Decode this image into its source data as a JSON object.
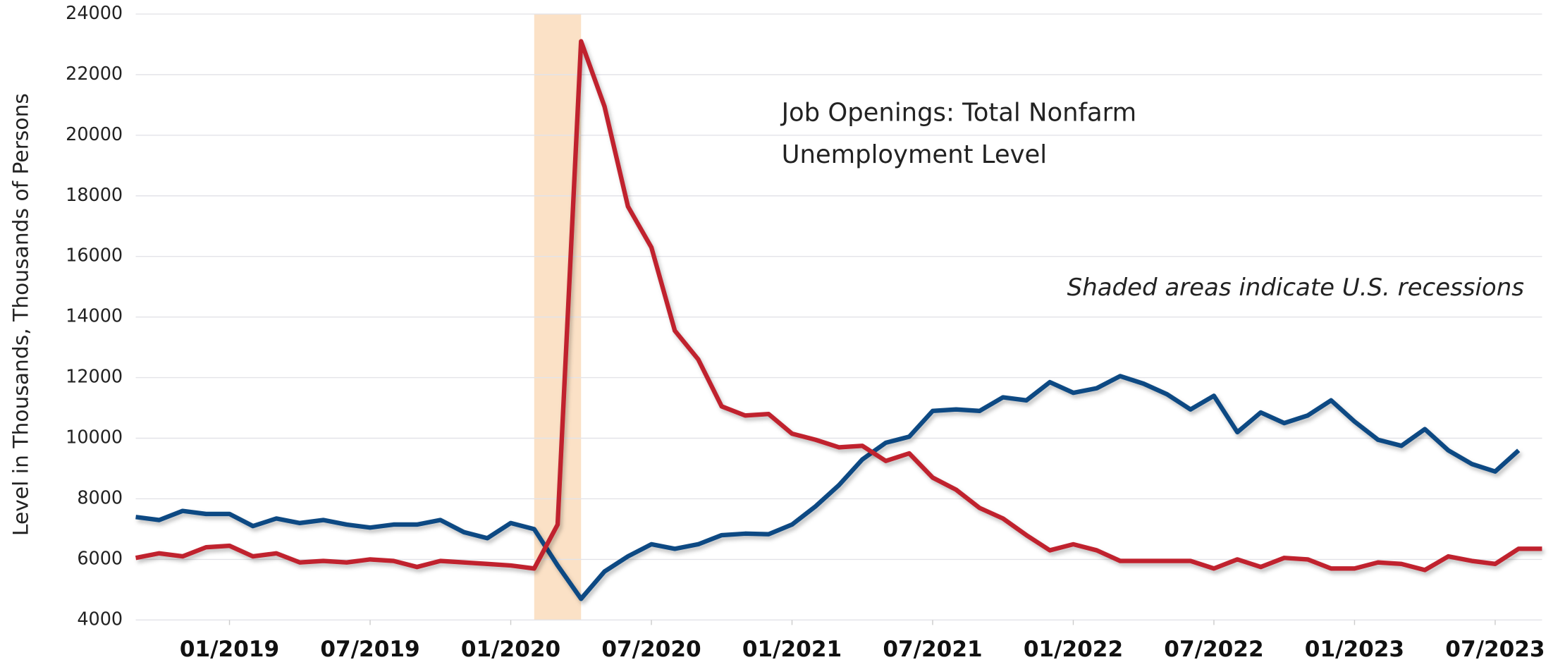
{
  "chart_data": {
    "type": "line",
    "y_label": "Level in Thousands, Thousands of Persons",
    "annotation": "Shaded areas indicate U.S. recessions",
    "x": [
      "09/2018",
      "10/2018",
      "11/2018",
      "12/2018",
      "01/2019",
      "02/2019",
      "03/2019",
      "04/2019",
      "05/2019",
      "06/2019",
      "07/2019",
      "08/2019",
      "09/2019",
      "10/2019",
      "11/2019",
      "12/2019",
      "01/2020",
      "02/2020",
      "03/2020",
      "04/2020",
      "05/2020",
      "06/2020",
      "07/2020",
      "08/2020",
      "09/2020",
      "10/2020",
      "11/2020",
      "12/2020",
      "01/2021",
      "02/2021",
      "03/2021",
      "04/2021",
      "05/2021",
      "06/2021",
      "07/2021",
      "08/2021",
      "09/2021",
      "10/2021",
      "11/2021",
      "12/2021",
      "01/2022",
      "02/2022",
      "03/2022",
      "04/2022",
      "05/2022",
      "06/2022",
      "07/2022",
      "08/2022",
      "09/2022",
      "10/2022",
      "11/2022",
      "12/2022",
      "01/2023",
      "02/2023",
      "03/2023",
      "04/2023",
      "05/2023",
      "06/2023",
      "07/2023",
      "08/2023",
      "09/2023"
    ],
    "xticks": [
      "01/2019",
      "07/2019",
      "01/2020",
      "07/2020",
      "01/2021",
      "07/2021",
      "01/2022",
      "07/2022",
      "01/2023",
      "07/2023"
    ],
    "shaded": [
      "02/2020",
      "04/2020"
    ],
    "shade_color": "#fbe1c6",
    "series": [
      {
        "name": "Job Openings: Total Nonfarm",
        "color": "#0d4a83",
        "values": [
          7400,
          7300,
          7600,
          7500,
          7500,
          7100,
          7350,
          7200,
          7300,
          7150,
          7050,
          7150,
          7150,
          7300,
          6900,
          6700,
          7200,
          7000,
          5800,
          4700,
          5600,
          6100,
          6500,
          6350,
          6500,
          6800,
          6850,
          6830,
          7150,
          7750,
          8450,
          9300,
          9850,
          10050,
          10900,
          10950,
          10900,
          11350,
          11250,
          11850,
          11500,
          11650,
          12050,
          11800,
          11450,
          10950,
          11400,
          10200,
          10850,
          10500,
          10750,
          11250,
          10550,
          9950,
          9750,
          10300,
          9600,
          9150,
          8900,
          9600,
          null
        ]
      },
      {
        "name": "Unemployment Level",
        "color": "#c0222f",
        "values": [
          6050,
          6200,
          6100,
          6400,
          6450,
          6100,
          6200,
          5900,
          5950,
          5900,
          6000,
          5950,
          5750,
          5950,
          5900,
          5850,
          5800,
          5700,
          7150,
          23100,
          20950,
          17650,
          16300,
          13550,
          12600,
          11050,
          10750,
          10800,
          10150,
          9950,
          9700,
          9750,
          9250,
          9500,
          8700,
          8300,
          7700,
          7350,
          6800,
          6300,
          6500,
          6300,
          5950,
          5950,
          5950,
          5950,
          5700,
          6000,
          5750,
          6050,
          6000,
          5700,
          5700,
          5900,
          5850,
          5650,
          6100,
          5950,
          5850,
          6350,
          6350
        ]
      }
    ],
    "ylim": [
      4000,
      24000
    ],
    "yticks": [
      4000,
      6000,
      8000,
      10000,
      12000,
      14000,
      16000,
      18000,
      20000,
      22000,
      24000
    ],
    "grid": true
  }
}
